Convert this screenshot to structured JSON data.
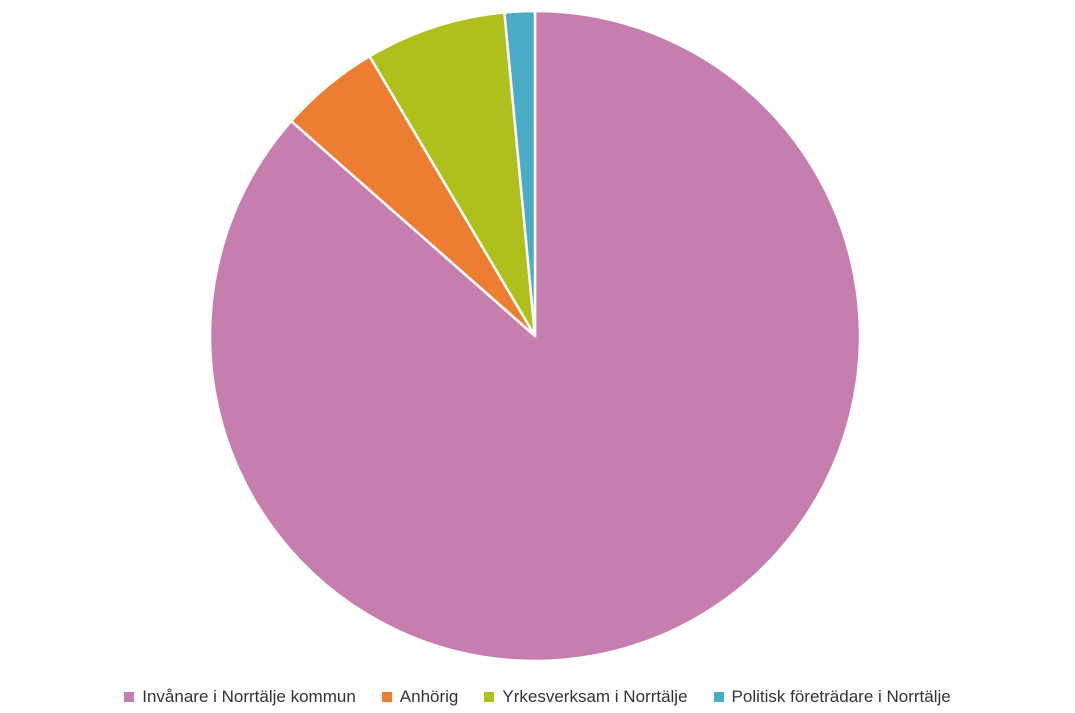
{
  "chart_data": {
    "type": "pie",
    "title": "",
    "start_angle_deg": 0,
    "direction": "clockwise",
    "legend_position": "bottom",
    "slices": [
      {
        "label": "Invånare i Norrtälje kommun",
        "value": 86.5,
        "color": "#c67eae"
      },
      {
        "label": "Anhörig",
        "value": 5.0,
        "color": "#ed7d31"
      },
      {
        "label": "Yrkesverksam i Norrtälje",
        "value": 7.0,
        "color": "#afc01c"
      },
      {
        "label": "Politisk företrädare i Norrtälje",
        "value": 1.5,
        "color": "#4bacc6"
      }
    ]
  }
}
